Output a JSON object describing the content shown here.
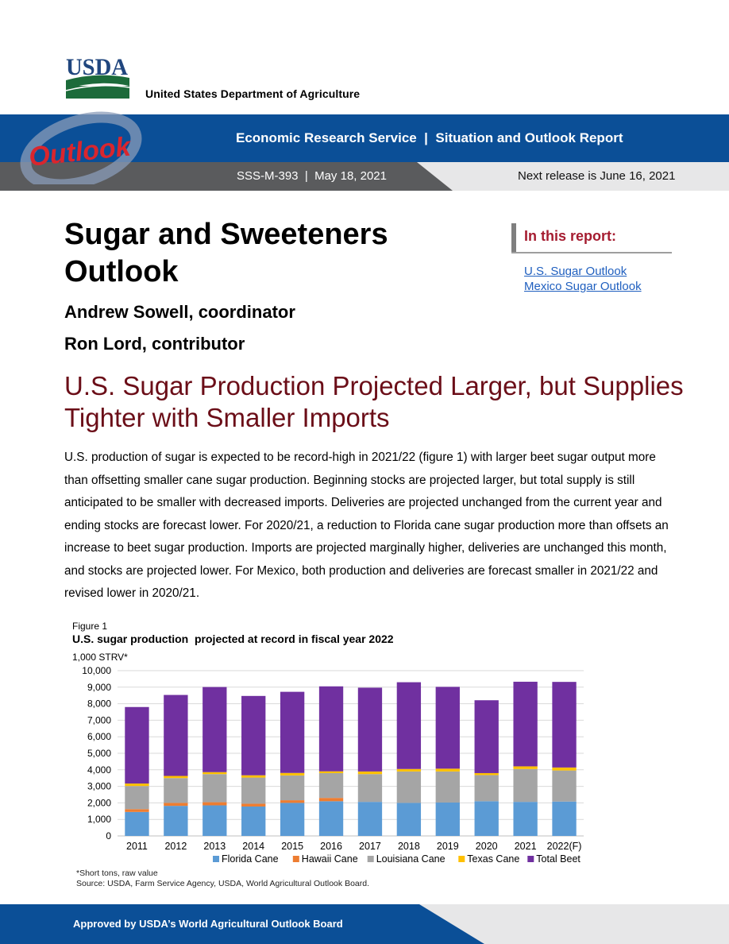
{
  "header": {
    "logo_text": "USDA",
    "department": "United States Department of Agriculture"
  },
  "banner": {
    "logo_text": "Outlook",
    "title": "Economic Research Service  |  Situation and Outlook Report",
    "issue": "SSS-M-393  |  May 18, 2021",
    "next_release": "Next release is June 16, 2021",
    "colors": {
      "blue": "#0b4f97",
      "grey": "#5a5b5d",
      "light": "#e7e7e8"
    }
  },
  "report": {
    "title": "Sugar and Sweeteners Outlook",
    "author_1": "Andrew Sowell, coordinator",
    "author_2": "Ron Lord, contributor"
  },
  "in_this_report": {
    "heading": "In this report:",
    "links": [
      "U.S. Sugar Outlook",
      "Mexico Sugar Outlook"
    ]
  },
  "headline": "U.S. Sugar Production Projected Larger, but Supplies Tighter with Smaller Imports",
  "body": "U.S. production of sugar is expected to be record-high in 2021/22 (figure 1) with larger beet sugar output more than offsetting smaller cane sugar production. Beginning stocks are projected larger, but total supply is still anticipated to be smaller with decreased imports. Deliveries are projected unchanged from the current year and ending stocks are forecast lower. For 2020/21, a reduction to Florida cane sugar production more than offsets an increase to beet sugar production. Imports are projected marginally higher, deliveries are unchanged this month, and stocks are projected lower. For Mexico, both production and deliveries are forecast smaller in 2021/22 and revised lower in 2020/21.",
  "figure": {
    "label": "Figure 1",
    "title": "U.S. sugar production  projected at record in fiscal year 2022",
    "unit": "1,000 STRV*",
    "note": "*Short tons, raw value",
    "source": "Source: USDA, Farm Service Agency, USDA, World Agricultural Outlook Board."
  },
  "chart_data": {
    "type": "bar",
    "stacked": true,
    "categories": [
      "2011",
      "2012",
      "2013",
      "2014",
      "2015",
      "2016",
      "2017",
      "2018",
      "2019",
      "2020",
      "2021",
      "2022(F)"
    ],
    "ylim": [
      0,
      10000
    ],
    "yticks": [
      0,
      1000,
      2000,
      3000,
      4000,
      5000,
      6000,
      7000,
      8000,
      9000,
      10000
    ],
    "ytick_labels": [
      "0",
      "1,000",
      "2,000",
      "3,000",
      "4,000",
      "5,000",
      "6,000",
      "7,000",
      "8,000",
      "9,000",
      "10,000"
    ],
    "grid": true,
    "legend_position": "bottom",
    "series": [
      {
        "name": "Florida Cane",
        "color": "#5b9bd5",
        "values": [
          1450,
          1820,
          1850,
          1780,
          2000,
          2100,
          2060,
          2000,
          2020,
          2100,
          2060,
          2080
        ]
      },
      {
        "name": "Hawaii Cane",
        "color": "#ed7d31",
        "values": [
          170,
          180,
          190,
          170,
          160,
          200,
          0,
          0,
          0,
          0,
          0,
          0
        ]
      },
      {
        "name": "Louisiana Cane",
        "color": "#a5a5a5",
        "values": [
          1400,
          1500,
          1700,
          1580,
          1500,
          1500,
          1680,
          1900,
          1880,
          1580,
          1990,
          1880
        ]
      },
      {
        "name": "Texas Cane",
        "color": "#ffc000",
        "values": [
          150,
          130,
          120,
          140,
          150,
          110,
          160,
          150,
          170,
          120,
          160,
          180
        ]
      },
      {
        "name": "Total Beet",
        "color": "#7030a0",
        "values": [
          4630,
          4900,
          5150,
          4800,
          4910,
          5140,
          5070,
          5250,
          4950,
          4410,
          5120,
          5180
        ]
      }
    ]
  },
  "footer": {
    "text": "Approved by USDA’s World Agricultural Outlook Board"
  }
}
